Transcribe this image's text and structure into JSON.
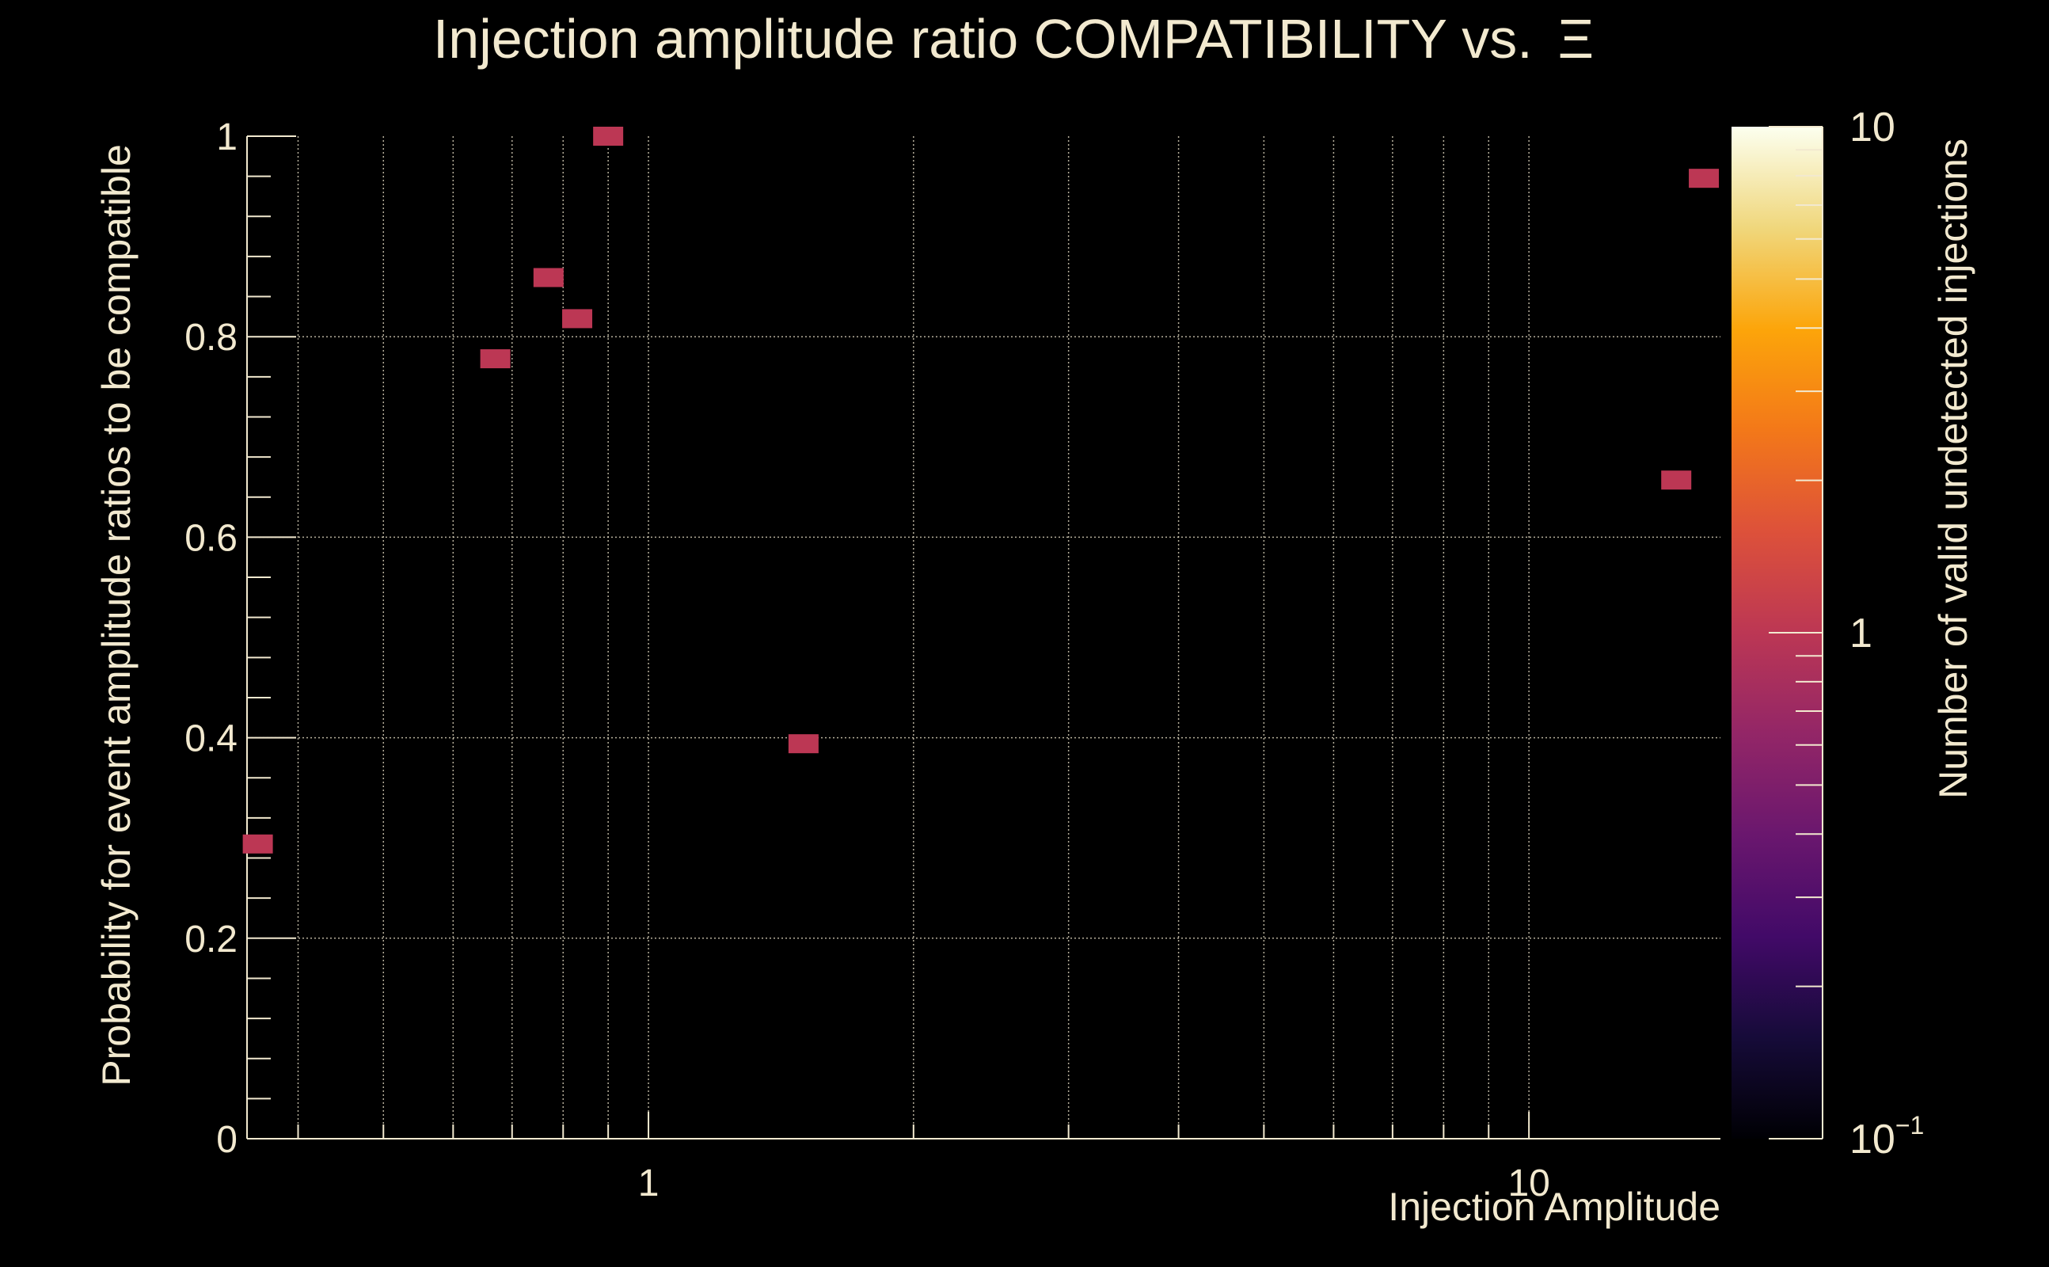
{
  "chart_data": {
    "type": "heatmap",
    "title": "Injection amplitude ratio COMPATIBILITY vs.",
    "title_symbol": "Ξ",
    "xlabel": "Injection Amplitude",
    "ylabel": "Probability for event amplitude ratios to be compatible",
    "zlabel": "Number of valid undetected injections",
    "x_scale": "log",
    "xlim": [
      0.35,
      16.5
    ],
    "ylim": [
      0,
      1
    ],
    "z_scale": "log",
    "zlim": [
      0.1,
      10
    ],
    "grid": true,
    "x_ticks": [
      {
        "value": 1,
        "label": "1"
      },
      {
        "value": 10,
        "label": "10"
      }
    ],
    "y_ticks": [
      {
        "value": 0,
        "label": "0"
      },
      {
        "value": 0.2,
        "label": "0.2"
      },
      {
        "value": 0.4,
        "label": "0.4"
      },
      {
        "value": 0.6,
        "label": "0.6"
      },
      {
        "value": 0.8,
        "label": "0.8"
      },
      {
        "value": 1,
        "label": "1"
      }
    ],
    "z_ticks": [
      {
        "value": 0.1,
        "base": "10",
        "exp": "−1"
      },
      {
        "value": 1,
        "base": "1",
        "exp": ""
      },
      {
        "value": 10,
        "base": "10",
        "exp": ""
      }
    ],
    "points": [
      {
        "x": 0.36,
        "y": 0.294,
        "count": 1
      },
      {
        "x": 0.67,
        "y": 0.778,
        "count": 1
      },
      {
        "x": 0.77,
        "y": 0.859,
        "count": 1
      },
      {
        "x": 0.83,
        "y": 0.818,
        "count": 1
      },
      {
        "x": 0.9,
        "y": 1.0,
        "count": 1
      },
      {
        "x": 1.5,
        "y": 0.394,
        "count": 1
      },
      {
        "x": 14.7,
        "y": 0.657,
        "count": 1
      },
      {
        "x": 15.8,
        "y": 0.958,
        "count": 1
      }
    ],
    "colors": {
      "background": "#000000",
      "foreground": "#f2e9cf",
      "marker": "#d9531a",
      "colormap": [
        "#000004",
        "#160b39",
        "#420a68",
        "#6a176e",
        "#932667",
        "#bc3754",
        "#dd513a",
        "#f37819",
        "#fca50a",
        "#f0d77c",
        "#fcffef"
      ]
    }
  }
}
